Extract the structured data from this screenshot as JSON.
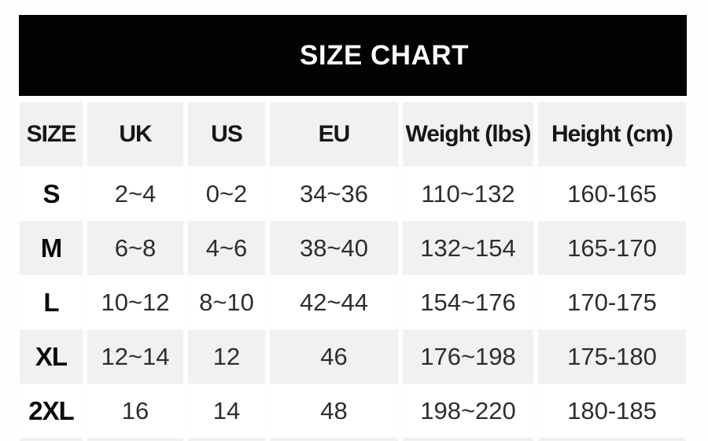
{
  "banner": {
    "title": "SIZE CHART",
    "background_color": "#020202",
    "text_color": "#fbfbfb"
  },
  "table_colors": {
    "stripe_bg": "#f1f1f1",
    "row_bg": "#ffffff",
    "header_text": "#161616",
    "cell_text": "#2e2e2e",
    "size_label_text": "#0b0b0b"
  },
  "chart_data": {
    "type": "table",
    "title": "SIZE CHART",
    "columns": [
      "SIZE",
      "UK",
      "US",
      "EU",
      "Weight (lbs)",
      "Height (cm)"
    ],
    "rows": [
      [
        "S",
        "2~4",
        "0~2",
        "34~36",
        "110~132",
        "160-165"
      ],
      [
        "M",
        "6~8",
        "4~6",
        "38~40",
        "132~154",
        "165-170"
      ],
      [
        "L",
        "10~12",
        "8~10",
        "42~44",
        "154~176",
        "170-175"
      ],
      [
        "XL",
        "12~14",
        "12",
        "46",
        "176~198",
        "175-180"
      ],
      [
        "2XL",
        "16",
        "14",
        "48",
        "198~220",
        "180-185"
      ]
    ],
    "layout": {
      "striping": "header, M row and XL row shaded gray; S, L, 2XL rows white",
      "partial_gray_row_clipped_at_bottom": true
    }
  }
}
